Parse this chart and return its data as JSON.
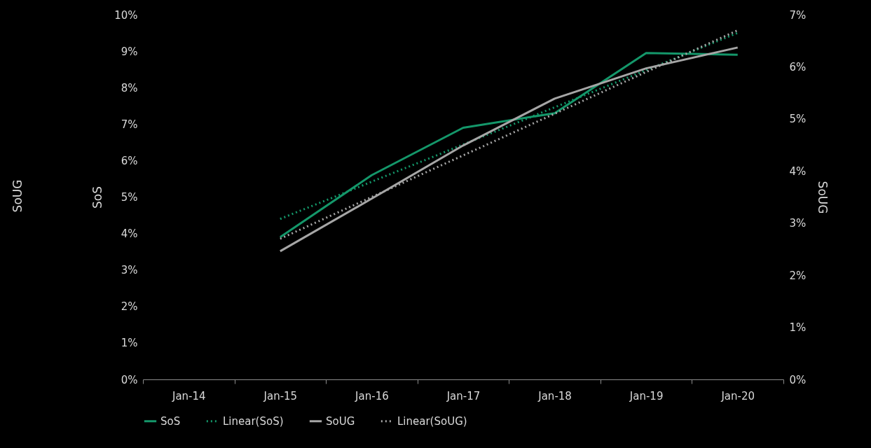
{
  "chart_data": {
    "type": "line",
    "ylabel": "SoS",
    "y2label": "SoUG",
    "annotations": [
      "SoUG"
    ],
    "categories": [
      "Jan-14",
      "Jan-15",
      "Jan-16",
      "Jan-17",
      "Jan-18",
      "Jan-19",
      "Jan-20"
    ],
    "series": [
      {
        "name": "SoS",
        "color": "#14976a",
        "line_style": "solid",
        "values": [
          null,
          3.9,
          5.6,
          6.9,
          7.3,
          8.95,
          8.9
        ]
      },
      {
        "name": "Linear(SoS)",
        "type": "line",
        "color": "#14976a",
        "line_style": "dotted",
        "x": [
          "Jan-15",
          "Jan-20"
        ],
        "values": [
          4.4,
          9.5
        ]
      },
      {
        "name": "SoUG",
        "color": "#a6a6a6",
        "line_style": "solid",
        "axis": "y2",
        "values": [
          null,
          2.46,
          3.47,
          4.49,
          5.39,
          5.97,
          6.37
        ]
      },
      {
        "name": "Linear(SoUG)",
        "type": "line",
        "color": "#a6a6a6",
        "line_style": "dotted",
        "axis": "y2",
        "x": [
          "Jan-15",
          "Jan-20"
        ],
        "values": [
          2.7,
          6.7
        ]
      }
    ],
    "ylim": [
      0,
      10
    ],
    "yticks": [
      {
        "value": 0,
        "label": "0%"
      },
      {
        "value": 1,
        "label": "1%"
      },
      {
        "value": 2,
        "label": "2%"
      },
      {
        "value": 3,
        "label": "3%"
      },
      {
        "value": 4,
        "label": "4%"
      },
      {
        "value": 5,
        "label": "5%"
      },
      {
        "value": 6,
        "label": "6%"
      },
      {
        "value": 7,
        "label": "7%"
      },
      {
        "value": 8,
        "label": "8%"
      },
      {
        "value": 9,
        "label": "9%"
      },
      {
        "value": 10,
        "label": "10%"
      }
    ],
    "y2lim": [
      0,
      7
    ],
    "y2ticks": [
      {
        "value": 0,
        "label": "0%"
      },
      {
        "value": 1,
        "label": "1%"
      },
      {
        "value": 2,
        "label": "2%"
      },
      {
        "value": 3,
        "label": "3%"
      },
      {
        "value": 4,
        "label": "4%"
      },
      {
        "value": 5,
        "label": "5%"
      },
      {
        "value": 6,
        "label": "6%"
      },
      {
        "value": 7,
        "label": "7%"
      }
    ],
    "legend": "bottom"
  }
}
